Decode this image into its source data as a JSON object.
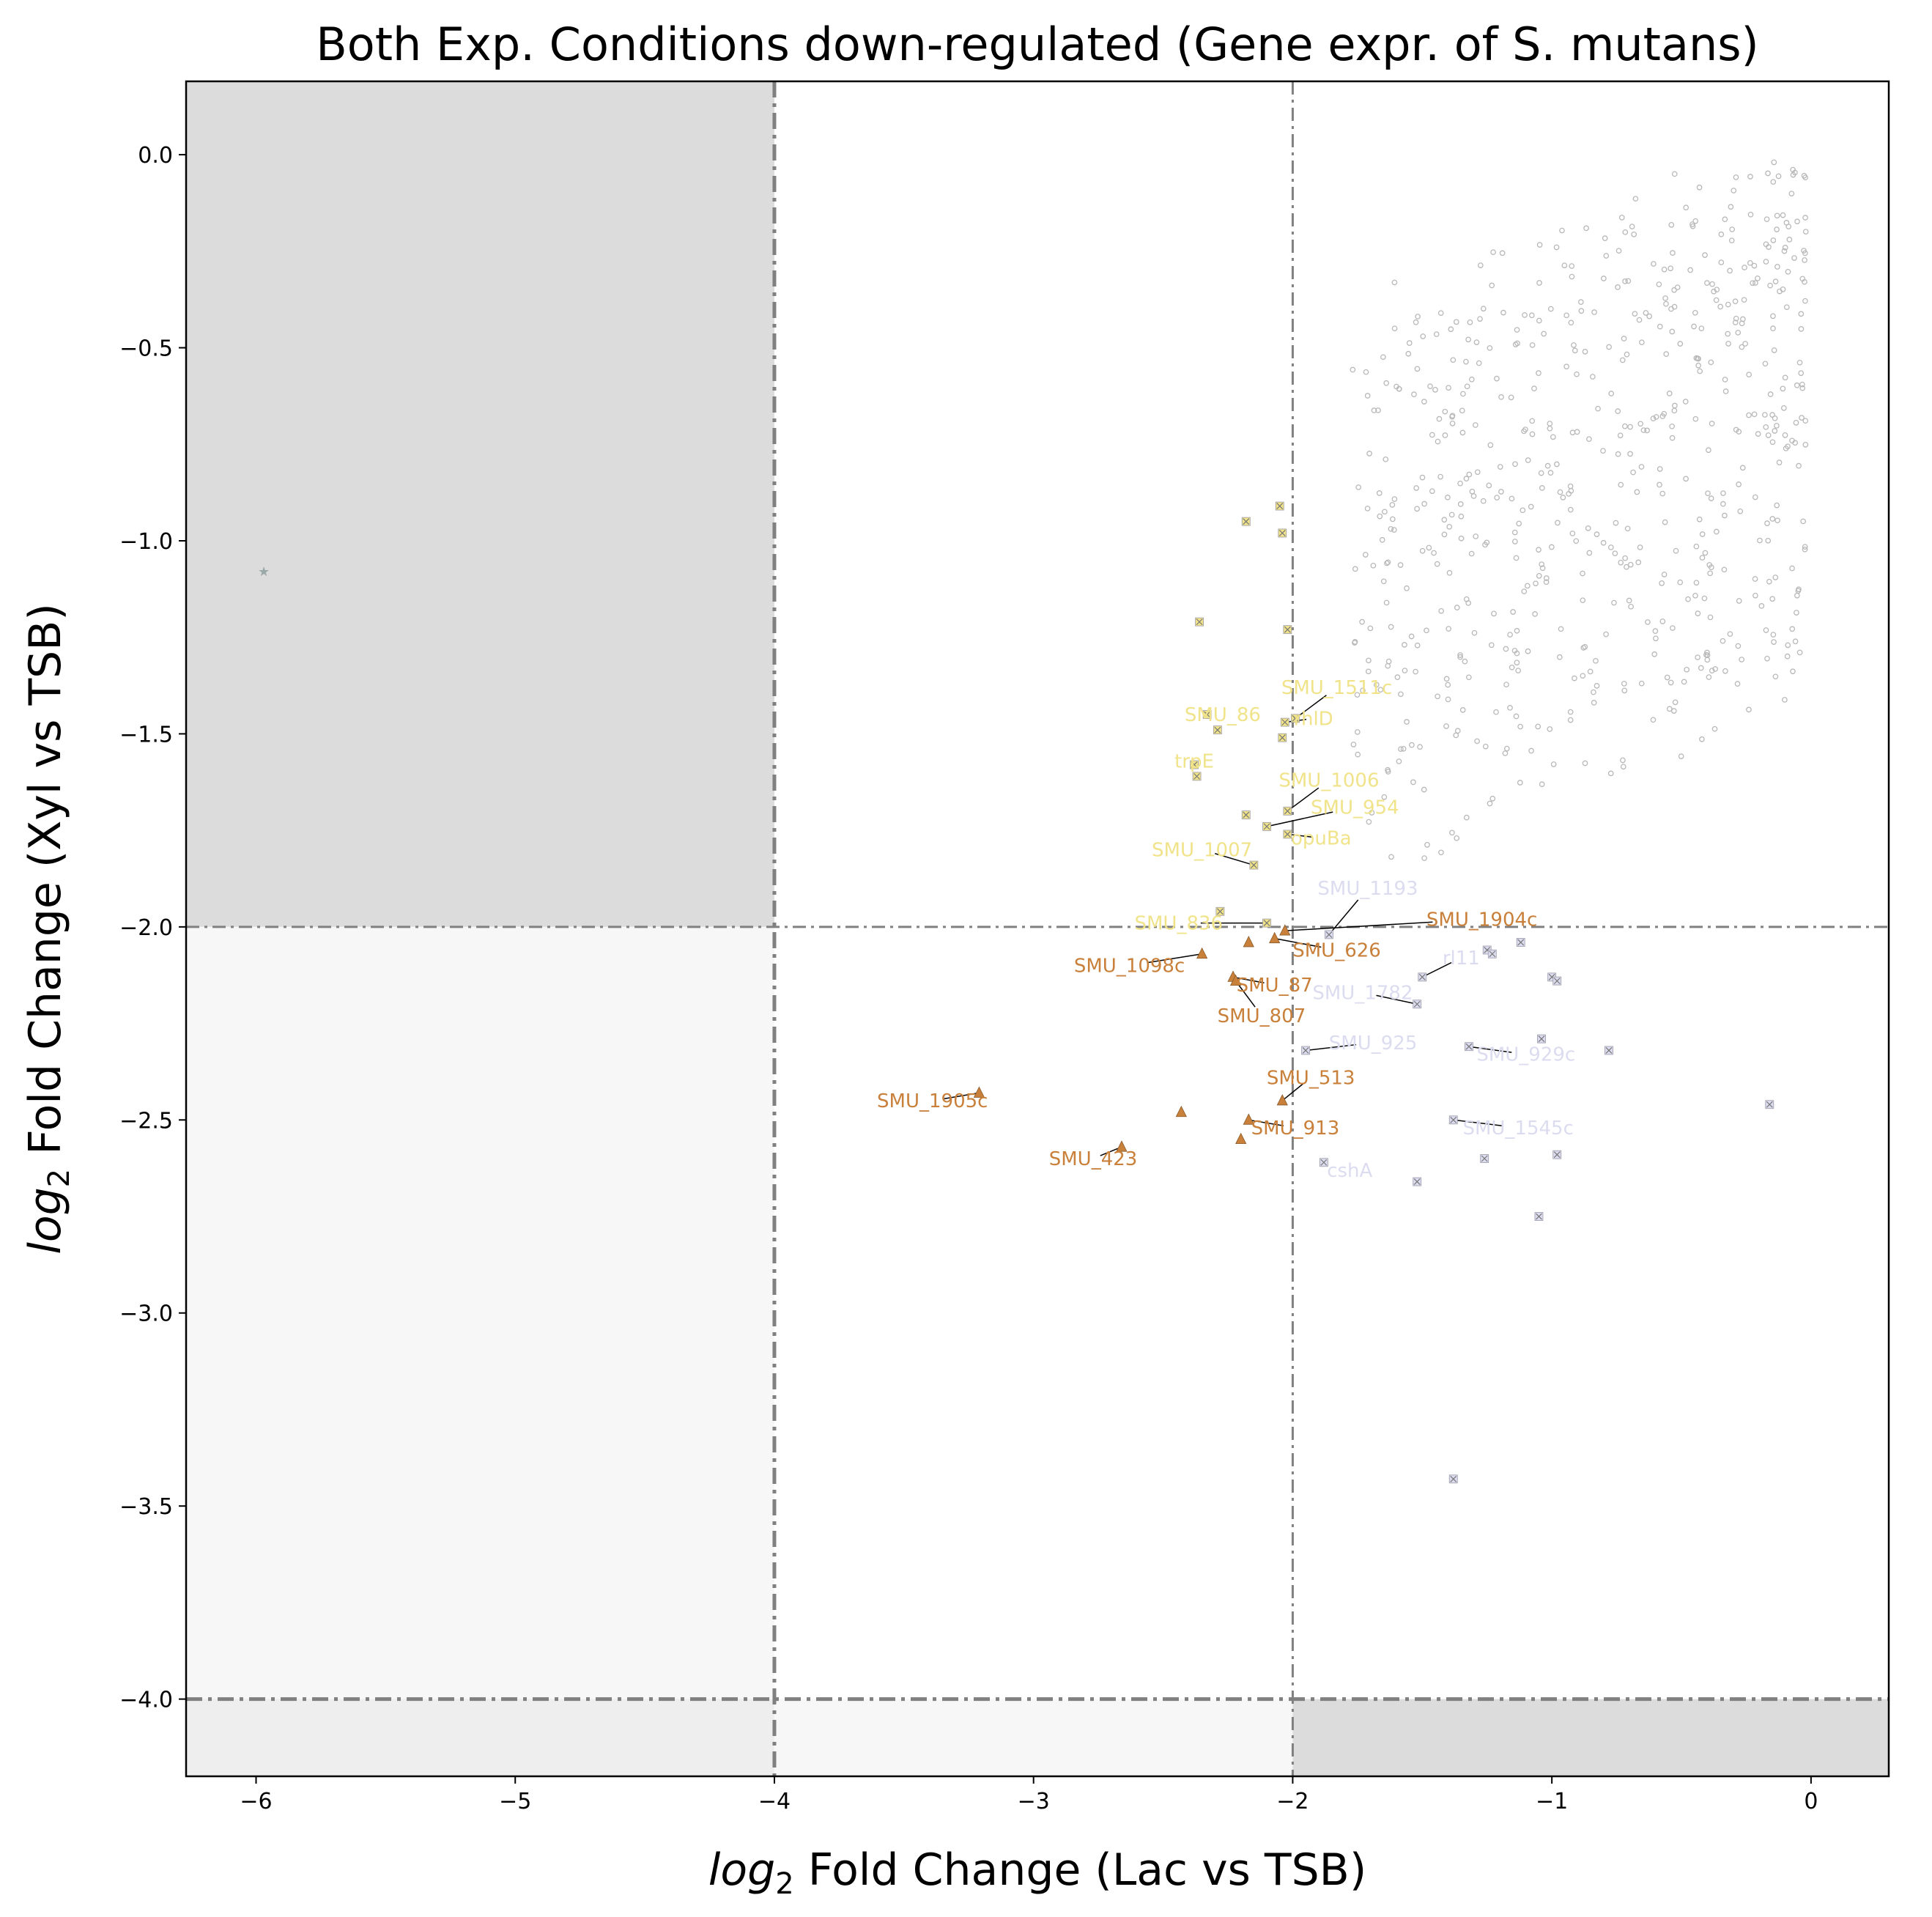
{
  "chart_data": {
    "type": "scatter",
    "title": "Both Exp. Conditions down-regulated (Gene expr. of S. mutans)",
    "xlabel_math": "log",
    "xlabel_sub": "2",
    "xlabel_text": " Fold Change (Lac vs TSB)",
    "ylabel_math": "log",
    "ylabel_sub": "2",
    "ylabel_text": " Fold Change (Xyl vs TSB)",
    "xlim": [
      -6.27,
      0.3
    ],
    "ylim": [
      -4.2,
      0.19
    ],
    "xticks": [
      -6,
      -5,
      -4,
      -3,
      -2,
      -1,
      0
    ],
    "xtick_labels": [
      "−6",
      "−5",
      "−4",
      "−3",
      "−2",
      "−1",
      "0"
    ],
    "yticks": [
      0.0,
      -0.5,
      -1.0,
      -1.5,
      -2.0,
      -2.5,
      -3.0,
      -3.5,
      -4.0
    ],
    "ytick_labels": [
      "0.0",
      "−0.5",
      "−1.0",
      "−1.5",
      "−2.0",
      "−2.5",
      "−3.0",
      "−3.5",
      "−4.0"
    ],
    "threshold_lines": {
      "x": [
        {
          "value": -4,
          "style": "heavy"
        },
        {
          "value": -2,
          "style": "light"
        }
      ],
      "y": [
        {
          "value": -2,
          "style": "light"
        },
        {
          "value": -4,
          "style": "heavy"
        }
      ]
    },
    "shaded_regions": [
      {
        "x": [
          -6.27,
          -4
        ],
        "y": [
          -2,
          0.19
        ],
        "color": "#dcdcdc"
      },
      {
        "x": [
          -6.27,
          -4
        ],
        "y": [
          -4,
          -2
        ],
        "color": "#f7f7f7"
      },
      {
        "x": [
          -4,
          -2
        ],
        "y": [
          -4.2,
          -4
        ],
        "color": "#f7f7f7"
      },
      {
        "x": [
          -6.27,
          -4
        ],
        "y": [
          -4.2,
          -4
        ],
        "color": "#eeeeee"
      },
      {
        "x": [
          -2,
          0.3
        ],
        "y": [
          -4.2,
          -4
        ],
        "color": "#dcdcdc"
      }
    ],
    "colors": {
      "yellow": "#f0e38a",
      "orange": "#c8803a",
      "lavender": "#dcdcf0",
      "grey": "#b8b8b8",
      "line": "#808080"
    },
    "series": [
      {
        "group": "xyl-only",
        "color": "yellow",
        "marker": "x-square",
        "points": [
          {
            "x": -2.05,
            "y": -0.91
          },
          {
            "x": -2.18,
            "y": -0.95
          },
          {
            "x": -2.04,
            "y": -0.98
          },
          {
            "x": -2.36,
            "y": -1.21
          },
          {
            "x": -2.02,
            "y": -1.23
          },
          {
            "x": -1.99,
            "y": -1.46,
            "label": "SMU_1511c",
            "lx": -1.83,
            "ly": -1.38
          },
          {
            "x": -2.33,
            "y": -1.45,
            "label": "SMU_86",
            "lx": -2.27,
            "ly": -1.45
          },
          {
            "x": -2.29,
            "y": -1.49
          },
          {
            "x": -2.03,
            "y": -1.47,
            "label": "rhlD",
            "lx": -1.92,
            "ly": -1.46
          },
          {
            "x": -2.04,
            "y": -1.51
          },
          {
            "x": -2.38,
            "y": -1.58,
            "label": "trpE",
            "lx": -2.38,
            "ly": -1.57
          },
          {
            "x": -2.37,
            "y": -1.61
          },
          {
            "x": -2.02,
            "y": -1.7,
            "label": "SMU_1006",
            "lx": -1.86,
            "ly": -1.62
          },
          {
            "x": -2.18,
            "y": -1.71
          },
          {
            "x": -2.1,
            "y": -1.74,
            "label": "SMU_954",
            "lx": -1.76,
            "ly": -1.69
          },
          {
            "x": -2.02,
            "y": -1.76,
            "label": "opuBa",
            "lx": -1.89,
            "ly": -1.77
          },
          {
            "x": -2.15,
            "y": -1.84,
            "label": "SMU_1007",
            "lx": -2.35,
            "ly": -1.8
          },
          {
            "x": -2.28,
            "y": -1.96
          },
          {
            "x": -2.1,
            "y": -1.99,
            "label": "SMU_836",
            "lx": -2.44,
            "ly": -1.99
          }
        ]
      },
      {
        "group": "both-down",
        "color": "orange",
        "marker": "triangle",
        "points": [
          {
            "x": -2.03,
            "y": -2.01,
            "label": "SMU_1904c",
            "lx": -1.27,
            "ly": -1.98
          },
          {
            "x": -2.07,
            "y": -2.03,
            "label": "SMU_626",
            "lx": -1.83,
            "ly": -2.06
          },
          {
            "x": -2.17,
            "y": -2.04
          },
          {
            "x": -2.35,
            "y": -2.07,
            "label": "SMU_1098c",
            "lx": -2.63,
            "ly": -2.1
          },
          {
            "x": -2.23,
            "y": -2.13,
            "label": "SMU_87",
            "lx": -2.07,
            "ly": -2.15
          },
          {
            "x": -2.22,
            "y": -2.14,
            "label": "SMU_807",
            "lx": -2.12,
            "ly": -2.23
          },
          {
            "x": -2.04,
            "y": -2.45,
            "label": "SMU_513",
            "lx": -1.93,
            "ly": -2.39
          },
          {
            "x": -3.21,
            "y": -2.43,
            "label": "SMU_1905c",
            "lx": -3.39,
            "ly": -2.45
          },
          {
            "x": -2.43,
            "y": -2.48
          },
          {
            "x": -2.17,
            "y": -2.5,
            "label": "SMU_913",
            "lx": -1.99,
            "ly": -2.52
          },
          {
            "x": -2.66,
            "y": -2.57,
            "label": "SMU_423",
            "lx": -2.77,
            "ly": -2.6
          },
          {
            "x": -2.2,
            "y": -2.55
          }
        ]
      },
      {
        "group": "lac-only",
        "color": "lavender",
        "marker": "x-square",
        "points": [
          {
            "x": -1.86,
            "y": -2.02,
            "label": "SMU_1193",
            "lx": -1.71,
            "ly": -1.9
          },
          {
            "x": -1.25,
            "y": -2.06
          },
          {
            "x": -1.23,
            "y": -2.07
          },
          {
            "x": -1.12,
            "y": -2.04
          },
          {
            "x": -1.5,
            "y": -2.13,
            "label": "rl11",
            "lx": -1.35,
            "ly": -2.08
          },
          {
            "x": -1.0,
            "y": -2.13
          },
          {
            "x": -0.98,
            "y": -2.14
          },
          {
            "x": -1.52,
            "y": -2.2,
            "label": "SMU_1782",
            "lx": -1.73,
            "ly": -2.17
          },
          {
            "x": -1.95,
            "y": -2.32,
            "label": "SMU_925",
            "lx": -1.69,
            "ly": -2.3
          },
          {
            "x": -1.32,
            "y": -2.31,
            "label": "SMU_929c",
            "lx": -1.1,
            "ly": -2.33
          },
          {
            "x": -1.04,
            "y": -2.29
          },
          {
            "x": -0.78,
            "y": -2.32
          },
          {
            "x": -1.38,
            "y": -2.5,
            "label": "SMU_1545c",
            "lx": -1.13,
            "ly": -2.52
          },
          {
            "x": -0.16,
            "y": -2.46
          },
          {
            "x": -0.98,
            "y": -2.59
          },
          {
            "x": -1.26,
            "y": -2.6
          },
          {
            "x": -1.88,
            "y": -2.61,
            "label": "cshA",
            "lx": -1.78,
            "ly": -2.63
          },
          {
            "x": -1.52,
            "y": -2.66
          },
          {
            "x": -1.05,
            "y": -2.75
          },
          {
            "x": -1.38,
            "y": -3.43
          }
        ]
      },
      {
        "group": "outlier",
        "color": "grey",
        "marker": "star",
        "points": [
          {
            "x": -5.97,
            "y": -1.08
          }
        ]
      }
    ],
    "background_cloud": {
      "description_shown": "",
      "color": "grey",
      "marker": "circle",
      "x_range": [
        -1.9,
        0.0
      ],
      "y_range": [
        -1.9,
        0.0
      ],
      "count": 620
    }
  }
}
